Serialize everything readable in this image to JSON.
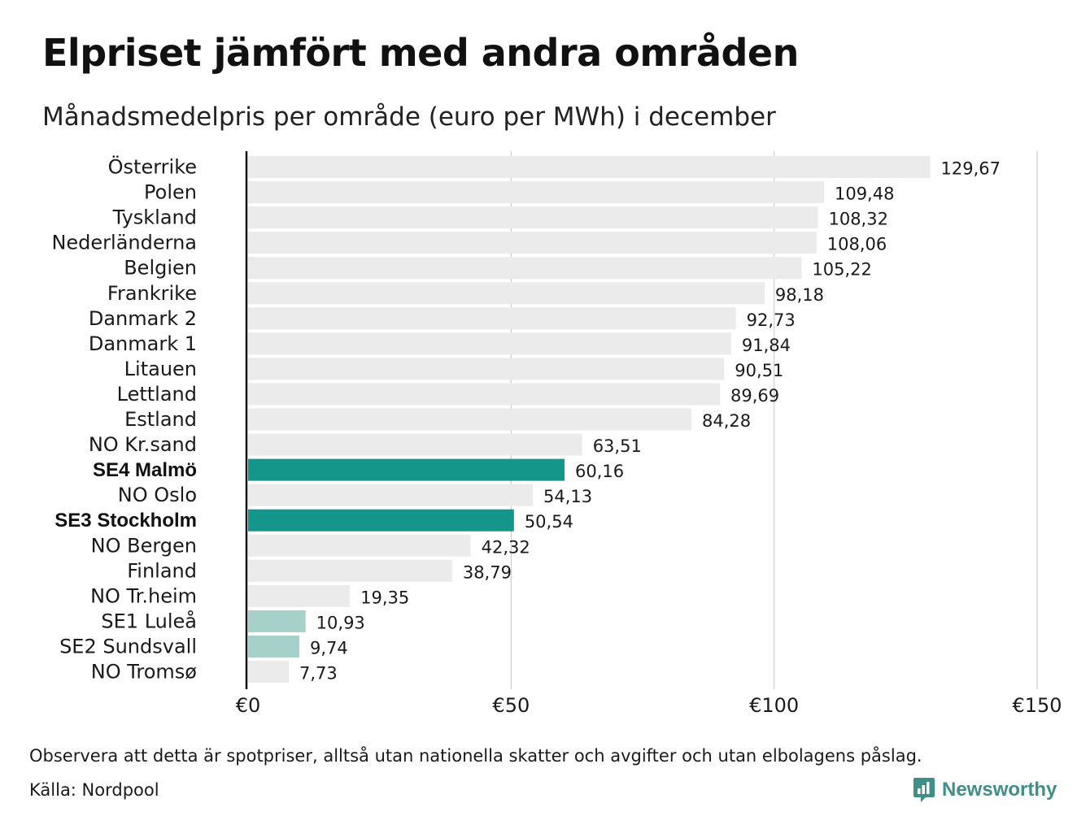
{
  "title": "Elpriset jämfört med andra områden",
  "subtitle": "Månadsmedelpris per område (euro per MWh) i december",
  "note": "Observera att detta är spotpriser, alltså utan nationella skatter och avgifter och utan elbolagens påslag.",
  "source": "Källa: Nordpool",
  "logo": {
    "text": "Newsworthy",
    "icon": "newsworthy-bar-chart-icon",
    "color": "#3f8f89"
  },
  "colors": {
    "default": "#ebebeb",
    "highlight": "#14968a",
    "light_highlight": "#a6d0ca",
    "grid": "#cccccc",
    "axis": "#111111"
  },
  "chart_data": {
    "type": "bar",
    "orientation": "horizontal",
    "title": "Elpriset jämfört med andra områden",
    "subtitle": "Månadsmedelpris per område (euro per MWh) i december",
    "xlim": [
      0,
      150
    ],
    "x_ticks": [
      0,
      50,
      100,
      150
    ],
    "x_tick_labels": [
      "€0",
      "€50",
      "€100",
      "€150"
    ],
    "grid": "vertical",
    "categories": [
      "Österrike",
      "Polen",
      "Tyskland",
      "Nederländerna",
      "Belgien",
      "Frankrike",
      "Danmark  2",
      "Danmark  1",
      "Litauen",
      "Lettland",
      "Estland",
      "NO Kr.sand",
      "SE4 Malmö",
      "NO Oslo",
      "SE3 Stockholm",
      "NO Bergen",
      "Finland",
      "NO Tr.heim",
      "SE1  Luleå",
      "SE2  Sundsvall",
      "NO Tromsø"
    ],
    "values": [
      129.67,
      109.48,
      108.32,
      108.06,
      105.22,
      98.18,
      92.73,
      91.84,
      90.51,
      89.69,
      84.28,
      63.51,
      60.16,
      54.13,
      50.54,
      42.32,
      38.79,
      19.35,
      10.93,
      9.74,
      7.73
    ],
    "value_labels": [
      "129,67",
      "109,48",
      "108,32",
      "108,06",
      "105,22",
      "98,18",
      "92,73",
      "91,84",
      "90,51",
      "89,69",
      "84,28",
      "63,51",
      "60,16",
      "54,13",
      "50,54",
      "42,32",
      "38,79",
      "19,35",
      "10,93",
      "9,74",
      "7,73"
    ],
    "highlight": [
      "default",
      "default",
      "default",
      "default",
      "default",
      "default",
      "default",
      "default",
      "default",
      "default",
      "default",
      "default",
      "highlight",
      "default",
      "highlight",
      "default",
      "default",
      "default",
      "light_highlight",
      "light_highlight",
      "default"
    ],
    "bold_labels": [
      "SE4 Malmö",
      "SE3 Stockholm"
    ]
  }
}
